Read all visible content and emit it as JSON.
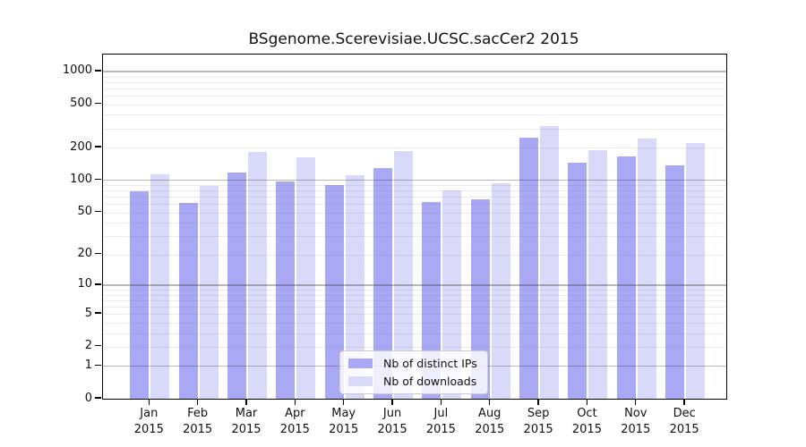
{
  "chart_data": {
    "type": "bar",
    "title": "BSgenome.Scerevisiae.UCSC.sacCer2 2015",
    "year_label": "2015",
    "categories": [
      "Jan",
      "Feb",
      "Mar",
      "Apr",
      "May",
      "Jun",
      "Jul",
      "Aug",
      "Sep",
      "Oct",
      "Nov",
      "Dec"
    ],
    "series": [
      {
        "name": "Nb of distinct IPs",
        "color": "#a8a8f4",
        "values": [
          78,
          61,
          118,
          97,
          90,
          129,
          62,
          66,
          248,
          146,
          165,
          138
        ]
      },
      {
        "name": "Nb of downloads",
        "color": "#d9d9f9",
        "values": [
          113,
          88,
          183,
          161,
          112,
          186,
          81,
          94,
          317,
          190,
          240,
          220
        ]
      }
    ],
    "yticks": [
      0,
      1,
      2,
      5,
      10,
      20,
      50,
      100,
      200,
      500,
      1000
    ],
    "minor_gridlines": [
      2,
      3,
      4,
      5,
      6,
      7,
      8,
      9,
      20,
      30,
      40,
      50,
      60,
      70,
      80,
      90,
      200,
      300,
      400,
      500,
      600,
      700,
      800,
      900
    ],
    "major_gridlines": [
      1,
      10,
      100,
      1000
    ],
    "yscale": "log10(value+1)",
    "ylim": [
      0,
      1100
    ],
    "grid": "horizontal",
    "legend_position": "lower center",
    "xlabel": "",
    "ylabel": ""
  }
}
